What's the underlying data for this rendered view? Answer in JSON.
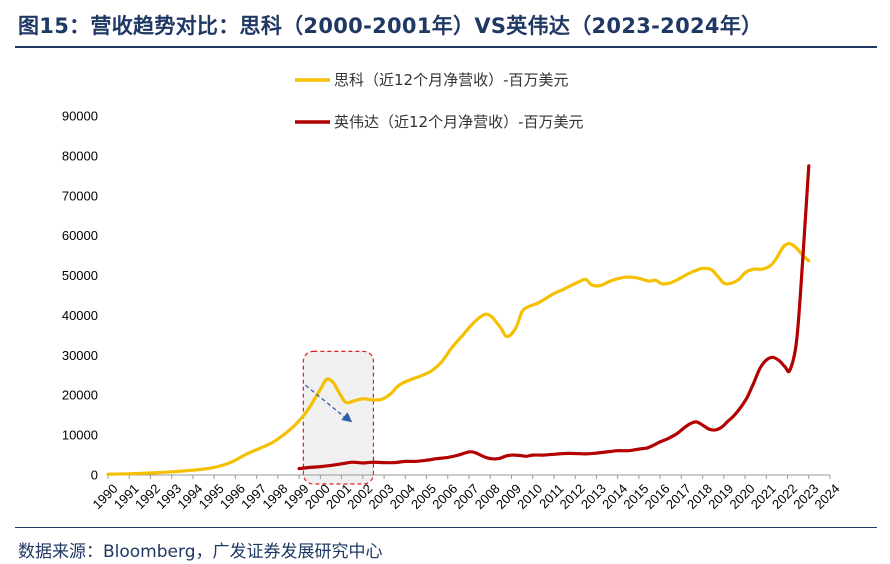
{
  "figure": {
    "title": "图15：营收趋势对比：思科（2000-2001年）VS英伟达（2023-2024年）",
    "source": "数据来源：Bloomberg，广发证券发展研究中心"
  },
  "colors": {
    "cisco": "#f5c000",
    "nvidia": "#b30000",
    "highlight_border": "#e02020",
    "highlight_fill": "#f0f0f0",
    "arrow": "#2e5ea8",
    "title": "#1f3864"
  },
  "chart_data": {
    "type": "line",
    "ylim": [
      0,
      90000
    ],
    "y_ticks": [
      "0",
      "10000",
      "20000",
      "30000",
      "40000",
      "50000",
      "60000",
      "70000",
      "80000",
      "90000"
    ],
    "x_ticks": [
      "1990",
      "1991",
      "1992",
      "1993",
      "1994",
      "1995",
      "1996",
      "1997",
      "1998",
      "1999",
      "2000",
      "2001",
      "2002",
      "2003",
      "2004",
      "2005",
      "2006",
      "2007",
      "2008",
      "2009",
      "2010",
      "2011",
      "2012",
      "2013",
      "2014",
      "2015",
      "2016",
      "2017",
      "2018",
      "2019",
      "2020",
      "2021",
      "2022",
      "2023",
      "2024"
    ],
    "xlim": [
      1990,
      2024
    ],
    "grid": false,
    "legend_position": "top-center",
    "series": [
      {
        "name": "思科（近12个月净营收）-百万美元",
        "color_key": "cisco",
        "points": [
          [
            1990.0,
            200
          ],
          [
            1991.0,
            300
          ],
          [
            1992.0,
            500
          ],
          [
            1993.0,
            800
          ],
          [
            1994.0,
            1200
          ],
          [
            1995.0,
            1900
          ],
          [
            1995.8,
            3200
          ],
          [
            1996.5,
            5200
          ],
          [
            1997.2,
            6800
          ],
          [
            1997.8,
            8300
          ],
          [
            1998.3,
            10200
          ],
          [
            1998.8,
            12500
          ],
          [
            1999.3,
            15500
          ],
          [
            1999.7,
            18800
          ],
          [
            2000.0,
            21500
          ],
          [
            2000.3,
            24000
          ],
          [
            2000.6,
            23200
          ],
          [
            2000.9,
            20500
          ],
          [
            2001.2,
            18200
          ],
          [
            2001.6,
            18600
          ],
          [
            2002.0,
            19100
          ],
          [
            2002.5,
            18800
          ],
          [
            2002.9,
            19000
          ],
          [
            2003.3,
            20300
          ],
          [
            2003.7,
            22500
          ],
          [
            2004.2,
            23800
          ],
          [
            2004.7,
            24800
          ],
          [
            2005.2,
            26000
          ],
          [
            2005.7,
            28300
          ],
          [
            2006.2,
            32000
          ],
          [
            2006.7,
            35000
          ],
          [
            2007.1,
            37500
          ],
          [
            2007.5,
            39500
          ],
          [
            2007.8,
            40300
          ],
          [
            2008.1,
            39500
          ],
          [
            2008.5,
            36800
          ],
          [
            2008.8,
            34700
          ],
          [
            2009.2,
            36800
          ],
          [
            2009.5,
            41000
          ],
          [
            2009.8,
            42200
          ],
          [
            2010.2,
            43000
          ],
          [
            2010.6,
            44200
          ],
          [
            2011.0,
            45500
          ],
          [
            2011.4,
            46400
          ],
          [
            2011.8,
            47500
          ],
          [
            2012.2,
            48500
          ],
          [
            2012.5,
            49000
          ],
          [
            2012.8,
            47600
          ],
          [
            2013.2,
            47500
          ],
          [
            2013.6,
            48500
          ],
          [
            2014.0,
            49200
          ],
          [
            2014.4,
            49600
          ],
          [
            2014.8,
            49500
          ],
          [
            2015.2,
            49000
          ],
          [
            2015.5,
            48600
          ],
          [
            2015.8,
            48800
          ],
          [
            2016.1,
            47900
          ],
          [
            2016.5,
            48200
          ],
          [
            2016.9,
            49200
          ],
          [
            2017.3,
            50400
          ],
          [
            2017.7,
            51300
          ],
          [
            2018.0,
            51800
          ],
          [
            2018.4,
            51500
          ],
          [
            2018.7,
            49900
          ],
          [
            2019.0,
            48100
          ],
          [
            2019.3,
            48000
          ],
          [
            2019.7,
            49000
          ],
          [
            2020.0,
            50700
          ],
          [
            2020.4,
            51600
          ],
          [
            2020.8,
            51600
          ],
          [
            2021.2,
            52500
          ],
          [
            2021.5,
            54500
          ],
          [
            2021.8,
            57200
          ],
          [
            2022.1,
            58000
          ],
          [
            2022.4,
            57000
          ],
          [
            2022.7,
            55200
          ],
          [
            2023.0,
            53700
          ]
        ]
      },
      {
        "name": "英伟达（近12个月净营收）-百万美元",
        "color_key": "nvidia",
        "points": [
          [
            1999.0,
            1600
          ],
          [
            1999.5,
            1900
          ],
          [
            2000.0,
            2100
          ],
          [
            2000.5,
            2400
          ],
          [
            2001.0,
            2800
          ],
          [
            2001.5,
            3200
          ],
          [
            2002.0,
            3000
          ],
          [
            2002.5,
            3200
          ],
          [
            2003.0,
            3100
          ],
          [
            2003.5,
            3100
          ],
          [
            2004.0,
            3400
          ],
          [
            2004.5,
            3400
          ],
          [
            2005.0,
            3700
          ],
          [
            2005.5,
            4100
          ],
          [
            2006.0,
            4400
          ],
          [
            2006.5,
            5000
          ],
          [
            2007.0,
            5800
          ],
          [
            2007.3,
            5600
          ],
          [
            2007.7,
            4600
          ],
          [
            2008.0,
            4100
          ],
          [
            2008.4,
            4100
          ],
          [
            2008.7,
            4700
          ],
          [
            2009.0,
            5000
          ],
          [
            2009.4,
            4900
          ],
          [
            2009.7,
            4700
          ],
          [
            2010.0,
            5000
          ],
          [
            2010.5,
            5000
          ],
          [
            2011.0,
            5200
          ],
          [
            2011.5,
            5400
          ],
          [
            2012.0,
            5400
          ],
          [
            2012.5,
            5300
          ],
          [
            2013.0,
            5500
          ],
          [
            2013.5,
            5800
          ],
          [
            2014.0,
            6100
          ],
          [
            2014.5,
            6100
          ],
          [
            2015.0,
            6500
          ],
          [
            2015.4,
            6800
          ],
          [
            2015.7,
            7500
          ],
          [
            2016.0,
            8300
          ],
          [
            2016.4,
            9200
          ],
          [
            2016.8,
            10400
          ],
          [
            2017.1,
            11700
          ],
          [
            2017.4,
            12800
          ],
          [
            2017.7,
            13300
          ],
          [
            2018.0,
            12500
          ],
          [
            2018.3,
            11500
          ],
          [
            2018.6,
            11300
          ],
          [
            2018.9,
            12000
          ],
          [
            2019.2,
            13500
          ],
          [
            2019.5,
            15000
          ],
          [
            2019.8,
            17000
          ],
          [
            2020.1,
            19500
          ],
          [
            2020.4,
            23000
          ],
          [
            2020.7,
            26700
          ],
          [
            2021.0,
            28800
          ],
          [
            2021.3,
            29500
          ],
          [
            2021.6,
            28700
          ],
          [
            2021.9,
            27000
          ],
          [
            2022.1,
            26200
          ],
          [
            2022.4,
            32500
          ],
          [
            2022.6,
            44900
          ],
          [
            2022.8,
            60900
          ],
          [
            2023.0,
            77500
          ]
        ]
      }
    ],
    "highlight_box": {
      "x_range": [
        1999.2,
        2002.5
      ],
      "y_range": [
        0,
        31000
      ]
    },
    "trend_arrow": {
      "from": [
        1999.3,
        22500
      ],
      "to": [
        2001.5,
        13200
      ]
    }
  }
}
